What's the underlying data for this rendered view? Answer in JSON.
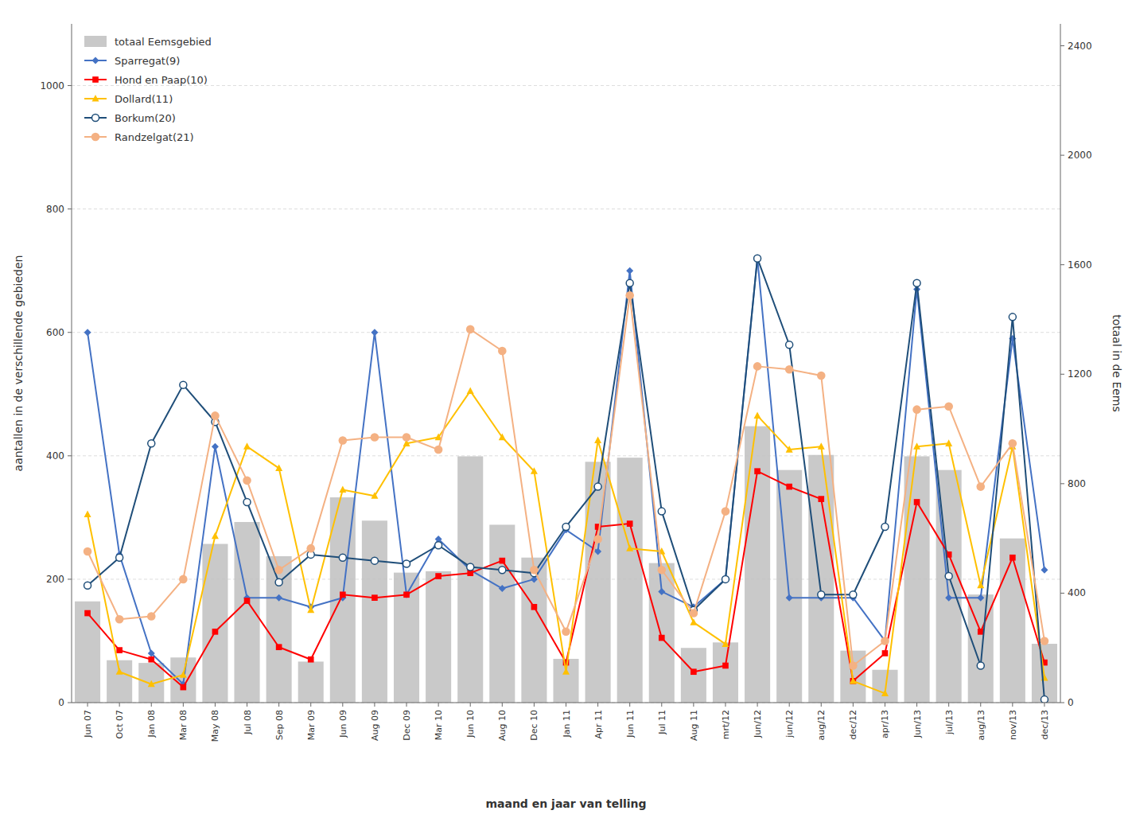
{
  "chart_data": {
    "type": "bar",
    "x_label": "maand en jaar van telling",
    "y_label": "aantallen in de verschillende gebieden",
    "y2_label": "totaal in de Eems",
    "categories": [
      "Jun 07",
      "Oct 07",
      "Jan 08",
      "Mar 08",
      "May 08",
      "Jul 08",
      "Sep 08",
      "Mar 09",
      "Jun 09",
      "Aug 09",
      "Dec 09",
      "Mar 10",
      "Jun 10",
      "Aug 10",
      "Dec 10",
      "Jan 11",
      "Apr 11",
      "Jun 11",
      "Jul 11",
      "Aug 11",
      "mrt/12",
      "Jun/12",
      "jun/12",
      "aug/12",
      "dec/12",
      "apr/13",
      "Jun/13",
      "jul/13",
      "aug/13",
      "nov/13",
      "dec/13"
    ],
    "series": [
      {
        "name": "totaal Eemsgebied",
        "type": "bar",
        "axis": "y2",
        "color": "#c0c0c0",
        "values": [
          370,
          155,
          145,
          165,
          580,
          660,
          535,
          150,
          750,
          665,
          475,
          480,
          900,
          650,
          530,
          160,
          880,
          895,
          510,
          200,
          220,
          1010,
          850,
          905,
          190,
          120,
          900,
          850,
          395,
          600,
          215
        ]
      },
      {
        "name": "Sparregat(9)",
        "type": "line",
        "color": "#4472c4",
        "marker": "diamond",
        "values": [
          600,
          240,
          80,
          30,
          415,
          170,
          170,
          155,
          170,
          600,
          175,
          265,
          215,
          185,
          200,
          280,
          245,
          700,
          180,
          155,
          200,
          720,
          170,
          170,
          170,
          100,
          670,
          170,
          170,
          590,
          215
        ]
      },
      {
        "name": "Hond en Paap(10)",
        "type": "line",
        "color": "#ff0000",
        "marker": "square",
        "values": [
          145,
          85,
          70,
          25,
          115,
          165,
          90,
          70,
          175,
          170,
          175,
          205,
          210,
          230,
          155,
          65,
          285,
          290,
          105,
          50,
          60,
          375,
          350,
          330,
          35,
          80,
          325,
          240,
          115,
          235,
          65
        ]
      },
      {
        "name": "Dollard(11)",
        "type": "line",
        "color": "#ffc000",
        "marker": "triangle",
        "values": [
          305,
          50,
          30,
          45,
          270,
          415,
          380,
          150,
          345,
          335,
          420,
          430,
          505,
          430,
          375,
          50,
          425,
          250,
          245,
          130,
          95,
          465,
          410,
          415,
          35,
          15,
          415,
          420,
          190,
          415,
          40
        ]
      },
      {
        "name": "Borkum(20)",
        "type": "line",
        "color": "#1f4e79",
        "marker": "open-circle",
        "values": [
          190,
          235,
          420,
          515,
          455,
          325,
          195,
          240,
          235,
          230,
          225,
          255,
          220,
          215,
          210,
          285,
          350,
          680,
          310,
          150,
          200,
          720,
          580,
          175,
          175,
          285,
          680,
          205,
          60,
          625,
          5
        ]
      },
      {
        "name": "Randzelgat(21)",
        "type": "line",
        "color": "#f4b183",
        "marker": "circle",
        "values": [
          245,
          135,
          140,
          200,
          465,
          360,
          215,
          250,
          425,
          430,
          430,
          410,
          605,
          570,
          215,
          115,
          265,
          660,
          215,
          145,
          310,
          545,
          540,
          530,
          60,
          100,
          475,
          480,
          350,
          420,
          100
        ]
      }
    ],
    "ylim": [
      0,
      1100
    ],
    "yticks": [
      0,
      200,
      400,
      600,
      800,
      1000
    ],
    "y2lim": [
      0,
      2480
    ],
    "y2ticks": [
      0,
      400,
      800,
      1200,
      1600,
      2000,
      2400
    ],
    "grid": true,
    "legend": "upper left"
  }
}
